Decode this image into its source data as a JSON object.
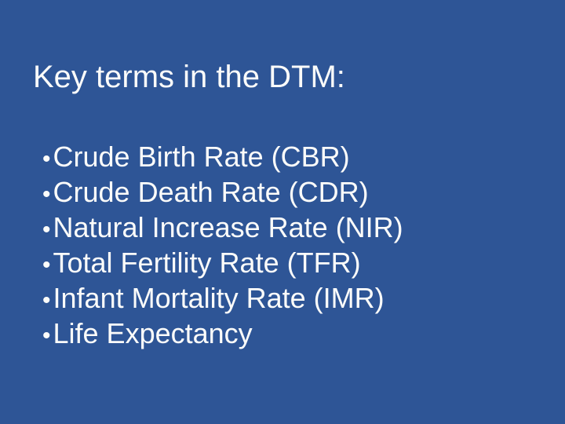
{
  "slide": {
    "title": "Key terms in the DTM:",
    "bullet_char": "•",
    "bullets": [
      "Crude Birth Rate (CBR)",
      "Crude Death Rate (CDR)",
      "Natural Increase Rate (NIR)",
      "Total Fertility Rate (TFR)",
      "Infant Mortality Rate (IMR)",
      "Life Expectancy"
    ],
    "colors": {
      "background": "#2E5596",
      "text": "#FCFCFA"
    }
  }
}
